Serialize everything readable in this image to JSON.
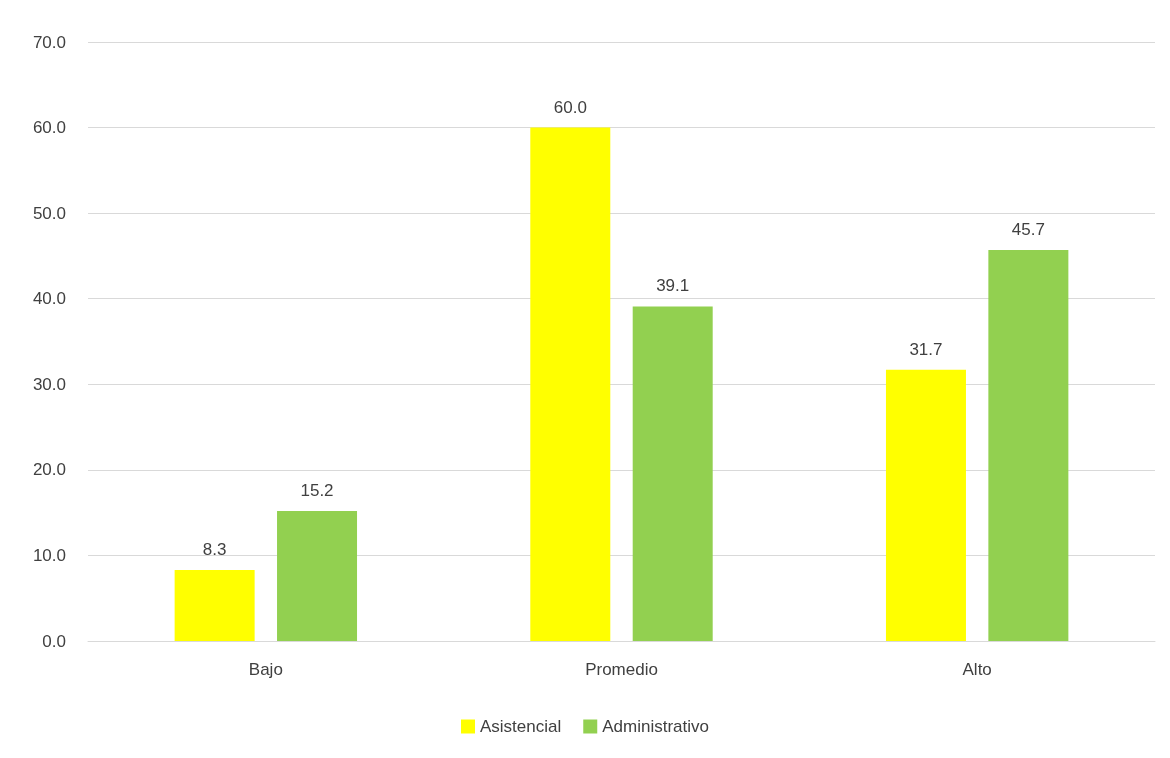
{
  "chart_data": {
    "type": "bar",
    "categories": [
      "Bajo",
      "Promedio",
      "Alto"
    ],
    "series": [
      {
        "name": "Asistencial",
        "color": "#ffff00",
        "values": [
          8.3,
          60.0,
          31.7
        ],
        "value_labels": [
          "8.3",
          "60.0",
          "31.7"
        ]
      },
      {
        "name": "Administrativo",
        "color": "#92d050",
        "values": [
          15.2,
          39.1,
          45.7
        ],
        "value_labels": [
          "15.2",
          "39.1",
          "45.7"
        ]
      }
    ],
    "ylim": [
      0,
      70
    ],
    "yticks": [
      {
        "value": 0,
        "label": "0.0"
      },
      {
        "value": 10,
        "label": "10.0"
      },
      {
        "value": 20,
        "label": "20.0"
      },
      {
        "value": 30,
        "label": "30.0"
      },
      {
        "value": 40,
        "label": "40.0"
      },
      {
        "value": 50,
        "label": "50.0"
      },
      {
        "value": 60,
        "label": "60.0"
      },
      {
        "value": 70,
        "label": "70.0"
      }
    ],
    "grid": "y",
    "legend": "bottom"
  }
}
